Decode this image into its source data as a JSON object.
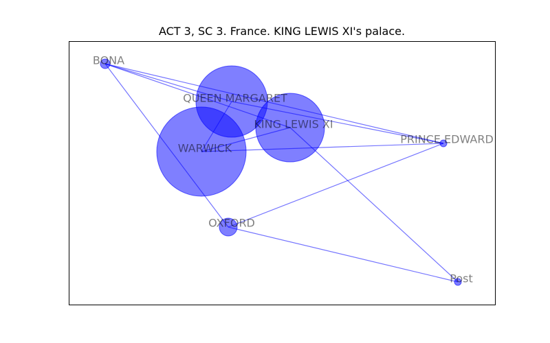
{
  "title": "ACT 3, SC 3. France. KING LEWIS XI's palace.",
  "colors": {
    "node": "#0000ff",
    "edge": "#0000ff",
    "frame": "#000000",
    "label": "#000000"
  },
  "nodes": [
    {
      "id": "BONA",
      "label": "BONA",
      "weight": 1
    },
    {
      "id": "QUEEN MARGARET",
      "label": "QUEEN MARGARET",
      "weight": 45
    },
    {
      "id": "KING LEWIS XI",
      "label": "KING LEWIS XI",
      "weight": 40
    },
    {
      "id": "WARWICK",
      "label": "WARWICK",
      "weight": 100
    },
    {
      "id": "PRINCE EDWARD",
      "label": "PRINCE EDWARD",
      "weight": 0.5
    },
    {
      "id": "OXFORD",
      "label": "OXFORD",
      "weight": 3
    },
    {
      "id": "Post",
      "label": "Post",
      "weight": 0.5
    }
  ],
  "edges": [
    [
      "BONA",
      "QUEEN MARGARET"
    ],
    [
      "BONA",
      "KING LEWIS XI"
    ],
    [
      "BONA",
      "PRINCE EDWARD"
    ],
    [
      "BONA",
      "OXFORD"
    ],
    [
      "QUEEN MARGARET",
      "WARWICK"
    ],
    [
      "QUEEN MARGARET",
      "PRINCE EDWARD"
    ],
    [
      "KING LEWIS XI",
      "WARWICK"
    ],
    [
      "KING LEWIS XI",
      "Post"
    ],
    [
      "WARWICK",
      "PRINCE EDWARD"
    ],
    [
      "OXFORD",
      "PRINCE EDWARD"
    ],
    [
      "OXFORD",
      "Post"
    ]
  ]
}
